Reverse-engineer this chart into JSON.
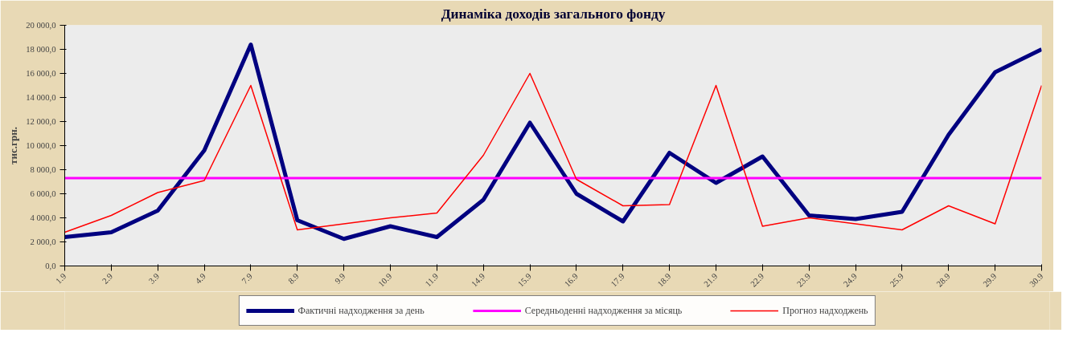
{
  "chart_data": {
    "type": "line",
    "title": "Динаміка доходів загального фонду",
    "ylabel": "тис.грн.",
    "categories": [
      "1.9",
      "2.9",
      "3.9",
      "4.9",
      "7.9",
      "8.9",
      "9.9",
      "10.9",
      "11.9",
      "14.9",
      "15.9",
      "16.9",
      "17.9",
      "18.9",
      "21.9",
      "22.9",
      "23.9",
      "24.9",
      "25.9",
      "28.9",
      "29.9",
      "30.9"
    ],
    "series": [
      {
        "name": "Фактичні надходження за день",
        "color": "#000080",
        "values": [
          2400,
          2800,
          4600,
          9600,
          18400,
          3800,
          2250,
          3300,
          2400,
          5500,
          11900,
          6000,
          3700,
          9400,
          6900,
          9100,
          4200,
          3900,
          4500,
          10900,
          16100,
          18000
        ]
      },
      {
        "name": "Середньоденні надходження за місяць",
        "color": "#ff00ff",
        "values": [
          7300,
          7300,
          7300,
          7300,
          7300,
          7300,
          7300,
          7300,
          7300,
          7300,
          7300,
          7300,
          7300,
          7300,
          7300,
          7300,
          7300,
          7300,
          7300,
          7300,
          7300,
          7300
        ]
      },
      {
        "name": "Прогноз надходжень",
        "color": "#ff0000",
        "values": [
          2800,
          4200,
          6100,
          7100,
          15000,
          3000,
          3500,
          4000,
          4400,
          9200,
          16000,
          7200,
          5000,
          5100,
          15000,
          3300,
          4000,
          3500,
          3000,
          5000,
          3500,
          15000
        ]
      }
    ],
    "ylim": [
      0,
      20000
    ],
    "yticks": [
      {
        "value": 0,
        "label": "0,0"
      },
      {
        "value": 2000,
        "label": "2 000,0"
      },
      {
        "value": 4000,
        "label": "4 000,0"
      },
      {
        "value": 6000,
        "label": "6 000,0"
      },
      {
        "value": 8000,
        "label": "8 000,0"
      },
      {
        "value": 10000,
        "label": "10 000,0"
      },
      {
        "value": 12000,
        "label": "12 000,0"
      },
      {
        "value": 14000,
        "label": "14 000,0"
      },
      {
        "value": 16000,
        "label": "16 000,0"
      },
      {
        "value": 18000,
        "label": "18 000,0"
      },
      {
        "value": 20000,
        "label": "20 000,0"
      }
    ],
    "grid": false,
    "legend": "bottom",
    "marker": "none",
    "line_style": "solid"
  }
}
